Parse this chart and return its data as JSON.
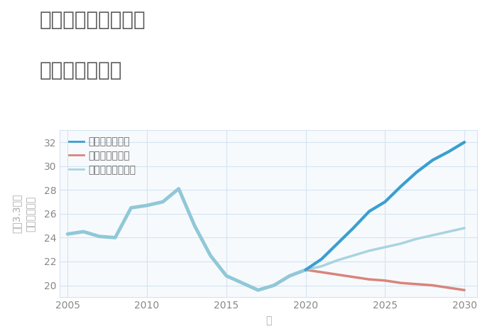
{
  "title_line1": "千葉県八街市大関の",
  "title_line2": "土地の価格推移",
  "xlabel": "年",
  "ylabel_top": "単価（万円）",
  "ylabel_bottom": "平（3.3㎡）",
  "background_color": "#ffffff",
  "plot_background": "#f7fafd",
  "historical": {
    "color": "#90c8d8",
    "linewidth": 3.5,
    "x": [
      2005,
      2006,
      2007,
      2008,
      2009,
      2010,
      2011,
      2012,
      2013,
      2014,
      2015,
      2016,
      2017,
      2018,
      2019,
      2020
    ],
    "y": [
      24.3,
      24.5,
      24.1,
      24.0,
      26.5,
      26.7,
      27.0,
      28.1,
      25.0,
      22.5,
      20.8,
      20.2,
      19.6,
      20.0,
      20.8,
      21.3
    ]
  },
  "good_scenario": {
    "label": "グッドシナリオ",
    "color": "#3a9fd0",
    "linewidth": 3.0,
    "x": [
      2020,
      2021,
      2022,
      2023,
      2024,
      2025,
      2026,
      2027,
      2028,
      2029,
      2030
    ],
    "y": [
      21.3,
      22.2,
      23.5,
      24.8,
      26.2,
      27.0,
      28.3,
      29.5,
      30.5,
      31.2,
      32.0
    ]
  },
  "bad_scenario": {
    "label": "バッドシナリオ",
    "color": "#d9847a",
    "linewidth": 2.5,
    "x": [
      2020,
      2021,
      2022,
      2023,
      2024,
      2025,
      2026,
      2027,
      2028,
      2029,
      2030
    ],
    "y": [
      21.3,
      21.1,
      20.9,
      20.7,
      20.5,
      20.4,
      20.2,
      20.1,
      20.0,
      19.8,
      19.6
    ]
  },
  "normal_scenario": {
    "label": "ノーマルシナリオ",
    "color": "#a8d4e0",
    "linewidth": 2.5,
    "x": [
      2020,
      2021,
      2022,
      2023,
      2024,
      2025,
      2026,
      2027,
      2028,
      2029,
      2030
    ],
    "y": [
      21.3,
      21.6,
      22.1,
      22.5,
      22.9,
      23.2,
      23.5,
      23.9,
      24.2,
      24.5,
      24.8
    ]
  },
  "ylim": [
    19.0,
    33.0
  ],
  "xlim": [
    2004.5,
    2030.8
  ],
  "yticks": [
    20,
    22,
    24,
    26,
    28,
    30,
    32
  ],
  "xticks": [
    2005,
    2010,
    2015,
    2020,
    2025,
    2030
  ],
  "title_fontsize": 20,
  "axis_label_fontsize": 10,
  "tick_fontsize": 10,
  "legend_fontsize": 10,
  "title_color": "#555555",
  "axis_color": "#aaaaaa",
  "tick_color": "#888888",
  "grid_color": "#d5e3ef",
  "legend_label_color": "#666666"
}
